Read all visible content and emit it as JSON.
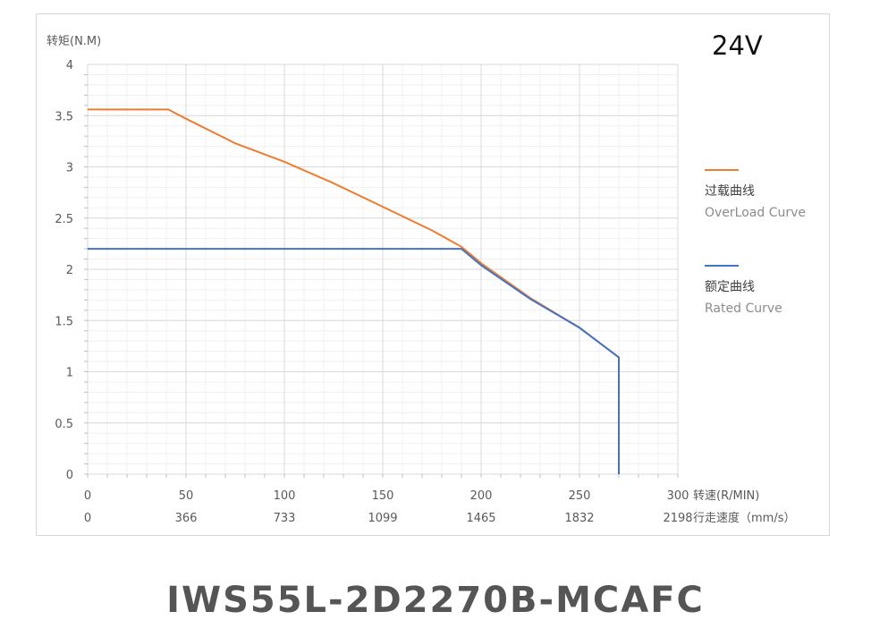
{
  "chart_data": {
    "type": "line",
    "title": "",
    "voltage_label": "24V",
    "ylabel": "转矩(N.M)",
    "xlabel": "转速(R/MIN)",
    "xlabel2": "行走速度（mm/s）",
    "xlim": [
      0,
      300
    ],
    "ylim": [
      0,
      4
    ],
    "x_ticks": [
      "0",
      "50",
      "100",
      "150",
      "200",
      "250",
      "300"
    ],
    "x2_ticks": [
      "0",
      "366",
      "733",
      "1099",
      "1465",
      "1832",
      "2198"
    ],
    "y_ticks": [
      "0",
      "0.5",
      "1",
      "1.5",
      "2",
      "2.5",
      "3",
      "3.5",
      "4"
    ],
    "grid": true,
    "legend_position": "right",
    "series": [
      {
        "name": "过载曲线",
        "name_en": "OverLoad Curve",
        "color": "#ed7d31",
        "points": [
          [
            0,
            3.56
          ],
          [
            41,
            3.56
          ],
          [
            50,
            3.47
          ],
          [
            75,
            3.23
          ],
          [
            100,
            3.05
          ],
          [
            125,
            2.84
          ],
          [
            150,
            2.61
          ],
          [
            175,
            2.38
          ],
          [
            190,
            2.22
          ],
          [
            200,
            2.06
          ],
          [
            225,
            1.72
          ],
          [
            250,
            1.43
          ],
          [
            270,
            1.14
          ],
          [
            270,
            0
          ]
        ]
      },
      {
        "name": "额定曲线",
        "name_en": "Rated Curve",
        "color": "#4472c4",
        "points": [
          [
            0,
            2.2
          ],
          [
            190,
            2.2
          ],
          [
            200,
            2.04
          ],
          [
            225,
            1.71
          ],
          [
            250,
            1.43
          ],
          [
            270,
            1.14
          ],
          [
            270,
            0
          ]
        ]
      }
    ]
  },
  "model": "IWS55L-2D2270B-MCAFC"
}
